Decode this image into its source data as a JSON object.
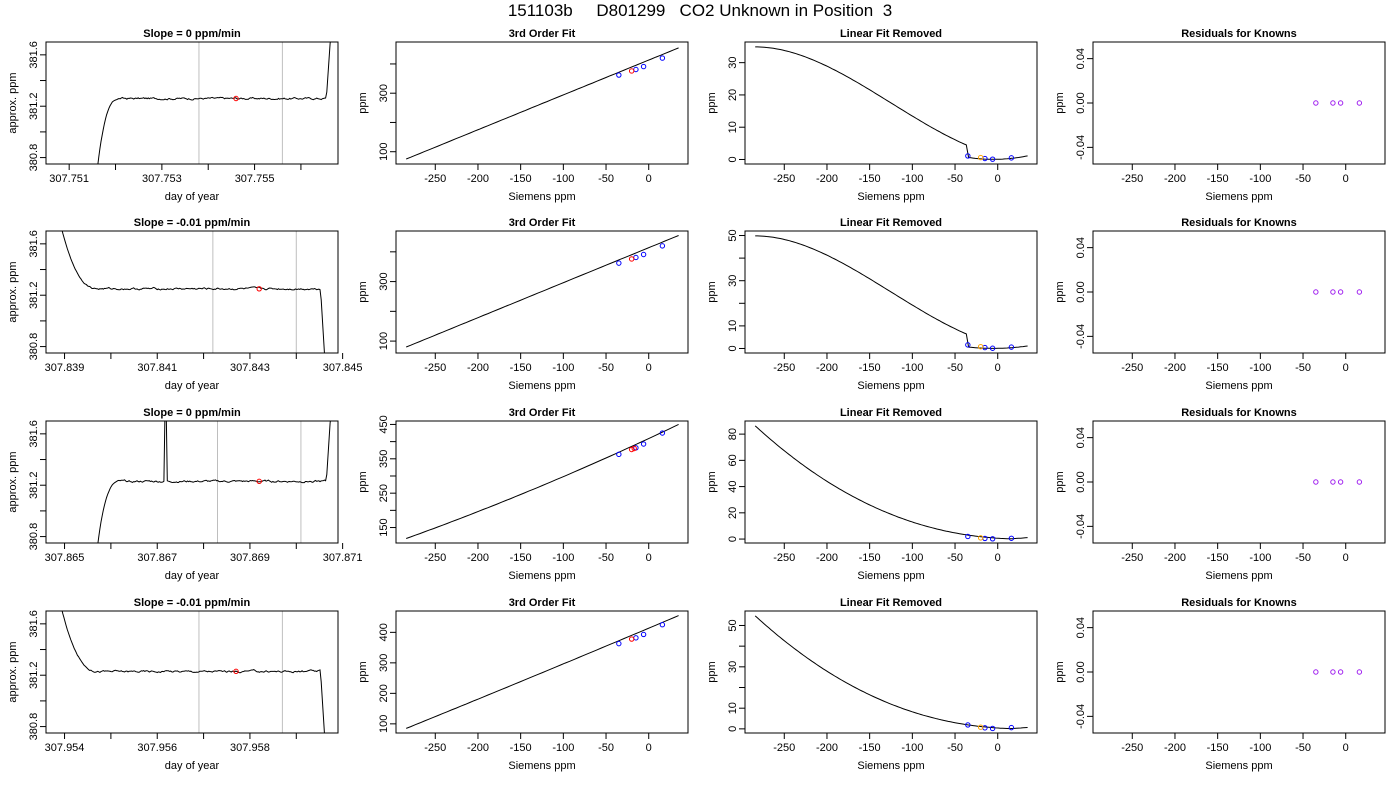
{
  "title": "151103b     D801299   CO2 Unknown in Position  3",
  "colors": {
    "line": "#000000",
    "vline": "#bebebe",
    "red": "#ff0000",
    "blue": "#0000ff",
    "purple": "#a020f0",
    "orange": "#ffa500"
  },
  "chart_data": [
    {
      "row": 0,
      "col": 0,
      "type": "line",
      "title": "Slope =  0  ppm/min",
      "xlabel": "day of year",
      "ylabel": "approx. ppm",
      "xlim": [
        307.7505,
        307.7568
      ],
      "ylim": [
        380.75,
        381.7
      ],
      "xticks": [
        307.751,
        307.752,
        307.753,
        307.754,
        307.755,
        307.756
      ],
      "xtick_labels": [
        "307.751",
        "",
        "307.753",
        "",
        "307.755",
        ""
      ],
      "yticks": [
        380.8,
        381.0,
        381.2,
        381.4,
        381.6
      ],
      "ytick_labels": [
        "380.8",
        "",
        "381.2",
        "",
        "381.6"
      ],
      "vlines": [
        307.7538,
        307.7556
      ],
      "red_point": [
        307.7546,
        381.26
      ],
      "trace": "a"
    },
    {
      "row": 0,
      "col": 1,
      "type": "line",
      "title": "3rd Order Fit",
      "xlabel": "Siemens ppm",
      "ylabel": "ppm",
      "xlim": [
        -296,
        46
      ],
      "ylim": [
        58,
        475
      ],
      "xticks": [
        -250,
        -200,
        -150,
        -100,
        -50,
        0
      ],
      "xtick_labels": [
        "-250",
        "-200",
        "-150",
        "-100",
        "-50",
        "0"
      ],
      "yticks": [
        100,
        200,
        300,
        400
      ],
      "ytick_labels": [
        "100",
        "",
        "300",
        ""
      ],
      "curve": {
        "x0": -284,
        "x1": 35,
        "y0": 75,
        "y1": 455,
        "k": 0
      },
      "blue_points": [
        [
          -35,
          362
        ],
        [
          -15,
          381
        ],
        [
          -6,
          391
        ],
        [
          16,
          420
        ]
      ],
      "red_points": [
        [
          -20,
          376
        ]
      ]
    },
    {
      "row": 0,
      "col": 2,
      "type": "line",
      "title": "Linear Fit Removed",
      "xlabel": "Siemens ppm",
      "ylabel": "ppm",
      "xlim": [
        -296,
        46
      ],
      "ylim": [
        -1.4,
        36.4
      ],
      "xticks": [
        -250,
        -200,
        -150,
        -100,
        -50,
        0
      ],
      "xtick_labels": [
        "-250",
        "-200",
        "-150",
        "-100",
        "-50",
        "0"
      ],
      "yticks": [
        0,
        10,
        20,
        30
      ],
      "ytick_labels": [
        "0",
        "10",
        "20",
        "30"
      ],
      "fit": "cubic",
      "blue_points": [
        [
          -35,
          1.1
        ],
        [
          -15,
          0.3
        ],
        [
          -6,
          0.1
        ],
        [
          16,
          0.5
        ]
      ],
      "orange_points": [
        [
          -20,
          0.6
        ]
      ]
    },
    {
      "row": 0,
      "col": 3,
      "type": "scatter",
      "title": "Residuals for Knowns",
      "xlabel": "Siemens ppm",
      "ylabel": "ppm",
      "xlim": [
        -296,
        46
      ],
      "ylim": [
        -0.055,
        0.055
      ],
      "xticks": [
        -250,
        -200,
        -150,
        -100,
        -50,
        0
      ],
      "xtick_labels": [
        "-250",
        "-200",
        "-150",
        "-100",
        "-50",
        "0"
      ],
      "yticks": [
        -0.04,
        0,
        0.04
      ],
      "ytick_labels": [
        "-0.04",
        "0.00",
        "0.04"
      ],
      "purple_points": [
        [
          -35,
          0
        ],
        [
          -15,
          0
        ],
        [
          -6,
          0
        ],
        [
          16,
          0
        ]
      ]
    },
    {
      "row": 1,
      "col": 0,
      "type": "line",
      "title": "Slope =  -0.01  ppm/min",
      "xlabel": "day of year",
      "ylabel": "approx. ppm",
      "xlim": [
        307.8386,
        307.8449
      ],
      "ylim": [
        380.75,
        381.7
      ],
      "xticks": [
        307.839,
        307.84,
        307.841,
        307.842,
        307.843,
        307.844,
        307.845
      ],
      "xtick_labels": [
        "307.839",
        "",
        "307.841",
        "",
        "307.843",
        "",
        "307.845"
      ],
      "yticks": [
        380.8,
        381.0,
        381.2,
        381.4,
        381.6
      ],
      "ytick_labels": [
        "380.8",
        "",
        "381.2",
        "",
        "381.6"
      ],
      "vlines": [
        307.8422,
        307.844
      ],
      "red_point": [
        307.8432,
        381.25
      ],
      "trace": "b"
    },
    {
      "row": 1,
      "col": 1,
      "type": "line",
      "title": "3rd Order Fit",
      "xlabel": "Siemens ppm",
      "ylabel": "ppm",
      "xlim": [
        -296,
        46
      ],
      "ylim": [
        60,
        470
      ],
      "xticks": [
        -250,
        -200,
        -150,
        -100,
        -50,
        0
      ],
      "xtick_labels": [
        "-250",
        "-200",
        "-150",
        "-100",
        "-50",
        "0"
      ],
      "yticks": [
        100,
        200,
        300,
        400
      ],
      "ytick_labels": [
        "100",
        "",
        "300",
        ""
      ],
      "curve": {
        "x0": -284,
        "x1": 35,
        "y0": 80,
        "y1": 455,
        "k": 0
      },
      "blue_points": [
        [
          -35,
          362
        ],
        [
          -15,
          381
        ],
        [
          -6,
          391
        ],
        [
          16,
          420
        ]
      ],
      "red_points": [
        [
          -20,
          376
        ]
      ]
    },
    {
      "row": 1,
      "col": 2,
      "type": "line",
      "title": "Linear Fit Removed",
      "xlabel": "Siemens ppm",
      "ylabel": "ppm",
      "xlim": [
        -296,
        46
      ],
      "ylim": [
        -2,
        52
      ],
      "xticks": [
        -250,
        -200,
        -150,
        -100,
        -50,
        0
      ],
      "xtick_labels": [
        "-250",
        "-200",
        "-150",
        "-100",
        "-50",
        "0"
      ],
      "yticks": [
        0,
        10,
        20,
        30,
        40,
        50
      ],
      "ytick_labels": [
        "0",
        "10",
        "",
        "30",
        "",
        "50"
      ],
      "fit": "cubic",
      "blue_points": [
        [
          -35,
          1.6
        ],
        [
          -15,
          0.4
        ],
        [
          -6,
          0.1
        ],
        [
          16,
          0.6
        ]
      ],
      "orange_points": [
        [
          -20,
          0.8
        ]
      ]
    },
    {
      "row": 1,
      "col": 3,
      "type": "scatter",
      "title": "Residuals for Knowns",
      "xlabel": "Siemens ppm",
      "ylabel": "ppm",
      "xlim": [
        -296,
        46
      ],
      "ylim": [
        -0.055,
        0.055
      ],
      "xticks": [
        -250,
        -200,
        -150,
        -100,
        -50,
        0
      ],
      "xtick_labels": [
        "-250",
        "-200",
        "-150",
        "-100",
        "-50",
        "0"
      ],
      "yticks": [
        -0.04,
        0,
        0.04
      ],
      "ytick_labels": [
        "-0.04",
        "0.00",
        "0.04"
      ],
      "purple_points": [
        [
          -35,
          0
        ],
        [
          -15,
          0
        ],
        [
          -6,
          0
        ],
        [
          16,
          0
        ]
      ]
    },
    {
      "row": 2,
      "col": 0,
      "type": "line",
      "title": "Slope =  0  ppm/min",
      "xlabel": "day of year",
      "ylabel": "approx. ppm",
      "xlim": [
        307.8646,
        307.8709
      ],
      "ylim": [
        380.75,
        381.7
      ],
      "xticks": [
        307.865,
        307.866,
        307.867,
        307.868,
        307.869,
        307.87,
        307.871
      ],
      "xtick_labels": [
        "307.865",
        "",
        "307.867",
        "",
        "307.869",
        "",
        "307.871"
      ],
      "yticks": [
        380.8,
        381.0,
        381.2,
        381.4,
        381.6
      ],
      "ytick_labels": [
        "380.8",
        "",
        "381.2",
        "",
        "381.6"
      ],
      "vlines": [
        307.8683,
        307.8701
      ],
      "red_point": [
        307.8692,
        381.23
      ],
      "trace": "c"
    },
    {
      "row": 2,
      "col": 1,
      "type": "line",
      "title": "3rd Order Fit",
      "xlabel": "Siemens ppm",
      "ylabel": "ppm",
      "xlim": [
        -296,
        46
      ],
      "ylim": [
        105,
        460
      ],
      "xticks": [
        -250,
        -200,
        -150,
        -100,
        -50,
        0
      ],
      "xtick_labels": [
        "-250",
        "-200",
        "-150",
        "-100",
        "-50",
        "0"
      ],
      "yticks": [
        150,
        200,
        250,
        300,
        350,
        400,
        450
      ],
      "ytick_labels": [
        "150",
        "",
        "250",
        "",
        "350",
        "",
        "450"
      ],
      "curve": {
        "x0": -284,
        "x1": 35,
        "y0": 118,
        "y1": 450,
        "k": 0.14
      },
      "blue_points": [
        [
          -35,
          363
        ],
        [
          -15,
          382
        ],
        [
          -6,
          393
        ],
        [
          16,
          425
        ]
      ],
      "red_points": [
        [
          -20,
          377
        ],
        [
          -17,
          380
        ]
      ]
    },
    {
      "row": 2,
      "col": 2,
      "type": "line",
      "title": "Linear Fit Removed",
      "xlabel": "Siemens ppm",
      "ylabel": "ppm",
      "xlim": [
        -296,
        46
      ],
      "ylim": [
        -3,
        90
      ],
      "xticks": [
        -250,
        -200,
        -150,
        -100,
        -50,
        0
      ],
      "xtick_labels": [
        "-250",
        "-200",
        "-150",
        "-100",
        "-50",
        "0"
      ],
      "yticks": [
        0,
        20,
        40,
        60,
        80
      ],
      "ytick_labels": [
        "0",
        "20",
        "40",
        "60",
        "80"
      ],
      "fit": "convex",
      "blue_points": [
        [
          -35,
          2.0
        ],
        [
          -15,
          0.5
        ],
        [
          -6,
          0.2
        ],
        [
          16,
          0.6
        ]
      ],
      "orange_points": [
        [
          -20,
          0.9
        ]
      ]
    },
    {
      "row": 2,
      "col": 3,
      "type": "scatter",
      "title": "Residuals for Knowns",
      "xlabel": "Siemens ppm",
      "ylabel": "ppm",
      "xlim": [
        -296,
        46
      ],
      "ylim": [
        -0.055,
        0.055
      ],
      "xticks": [
        -250,
        -200,
        -150,
        -100,
        -50,
        0
      ],
      "xtick_labels": [
        "-250",
        "-200",
        "-150",
        "-100",
        "-50",
        "0"
      ],
      "yticks": [
        -0.04,
        0,
        0.04
      ],
      "ytick_labels": [
        "-0.04",
        "0.00",
        "0.04"
      ],
      "purple_points": [
        [
          -35,
          0
        ],
        [
          -15,
          0
        ],
        [
          -6,
          0
        ],
        [
          16,
          0
        ]
      ]
    },
    {
      "row": 3,
      "col": 0,
      "type": "line",
      "title": "Slope =  -0.01  ppm/min",
      "xlabel": "day of year",
      "ylabel": "approx. ppm",
      "xlim": [
        307.9536,
        307.9599
      ],
      "ylim": [
        380.75,
        381.7
      ],
      "xticks": [
        307.954,
        307.955,
        307.956,
        307.957,
        307.958,
        307.959
      ],
      "xtick_labels": [
        "307.954",
        "",
        "307.956",
        "",
        "307.958",
        ""
      ],
      "yticks": [
        380.8,
        381.0,
        381.2,
        381.4,
        381.6
      ],
      "ytick_labels": [
        "380.8",
        "",
        "381.2",
        "",
        "381.6"
      ],
      "vlines": [
        307.9569,
        307.9587
      ],
      "red_point": [
        307.9577,
        381.23
      ],
      "trace": "d"
    },
    {
      "row": 3,
      "col": 1,
      "type": "line",
      "title": "3rd Order Fit",
      "xlabel": "Siemens ppm",
      "ylabel": "ppm",
      "xlim": [
        -296,
        46
      ],
      "ylim": [
        70,
        470
      ],
      "xticks": [
        -250,
        -200,
        -150,
        -100,
        -50,
        0
      ],
      "xtick_labels": [
        "-250",
        "-200",
        "-150",
        "-100",
        "-50",
        "0"
      ],
      "yticks": [
        100,
        200,
        300,
        400
      ],
      "ytick_labels": [
        "100",
        "200",
        "300",
        "400"
      ],
      "curve": {
        "x0": -284,
        "x1": 35,
        "y0": 85,
        "y1": 455,
        "k": 0.02
      },
      "blue_points": [
        [
          -35,
          363
        ],
        [
          -15,
          382
        ],
        [
          -6,
          393
        ],
        [
          16,
          425
        ]
      ],
      "red_points": [
        [
          -20,
          378
        ]
      ]
    },
    {
      "row": 3,
      "col": 2,
      "type": "line",
      "title": "Linear Fit Removed",
      "xlabel": "Siemens ppm",
      "ylabel": "ppm",
      "xlim": [
        -296,
        46
      ],
      "ylim": [
        -2,
        57
      ],
      "xticks": [
        -250,
        -200,
        -150,
        -100,
        -50,
        0
      ],
      "xtick_labels": [
        "-250",
        "-200",
        "-150",
        "-100",
        "-50",
        "0"
      ],
      "yticks": [
        0,
        10,
        20,
        30,
        40,
        50
      ],
      "ytick_labels": [
        "0",
        "10",
        "",
        "30",
        "",
        "50"
      ],
      "fit": "convex",
      "blue_points": [
        [
          -35,
          1.9
        ],
        [
          -15,
          0.5
        ],
        [
          -6,
          0.2
        ],
        [
          16,
          0.6
        ]
      ],
      "orange_points": [
        [
          -20,
          0.8
        ]
      ]
    },
    {
      "row": 3,
      "col": 3,
      "type": "scatter",
      "title": "Residuals for Knowns",
      "xlabel": "Siemens ppm",
      "ylabel": "ppm",
      "xlim": [
        -296,
        46
      ],
      "ylim": [
        -0.055,
        0.055
      ],
      "xticks": [
        -250,
        -200,
        -150,
        -100,
        -50,
        0
      ],
      "xtick_labels": [
        "-250",
        "-200",
        "-150",
        "-100",
        "-50",
        "0"
      ],
      "yticks": [
        -0.04,
        0,
        0.04
      ],
      "ytick_labels": [
        "-0.04",
        "0.00",
        "0.04"
      ],
      "purple_points": [
        [
          -35,
          0
        ],
        [
          -15,
          0
        ],
        [
          -6,
          0
        ],
        [
          16,
          0
        ]
      ]
    }
  ]
}
